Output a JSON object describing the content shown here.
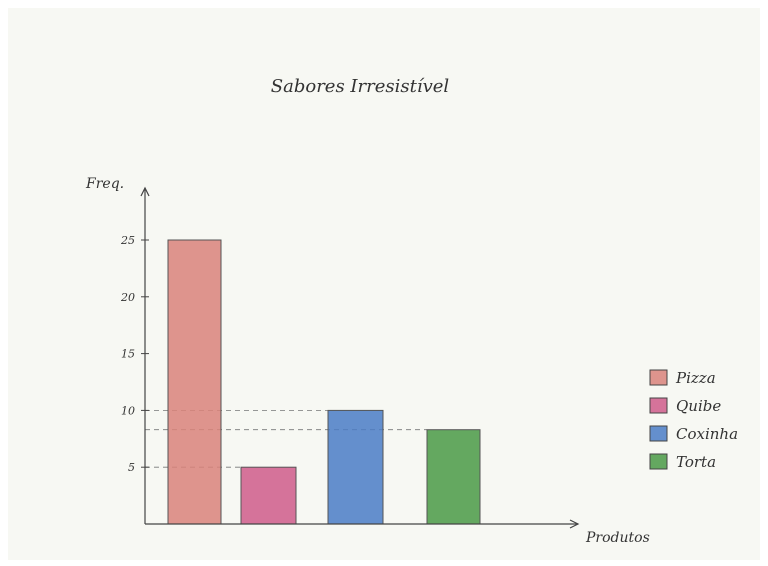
{
  "chart_data": {
    "type": "bar",
    "title": "Sabores Irresistível",
    "xlabel": "Produtos",
    "ylabel": "Freq.",
    "categories": [
      "Pizza",
      "Quibe",
      "Coxinha",
      "Torta"
    ],
    "values": [
      25,
      5,
      10,
      8.3
    ],
    "colors": [
      "#d9827a",
      "#cf5c8a",
      "#4a7cc6",
      "#4a9a45"
    ],
    "yticks": [
      5,
      10,
      15,
      20,
      25
    ],
    "ylim": [
      0,
      28
    ],
    "legend_position": "right",
    "grid": false
  }
}
